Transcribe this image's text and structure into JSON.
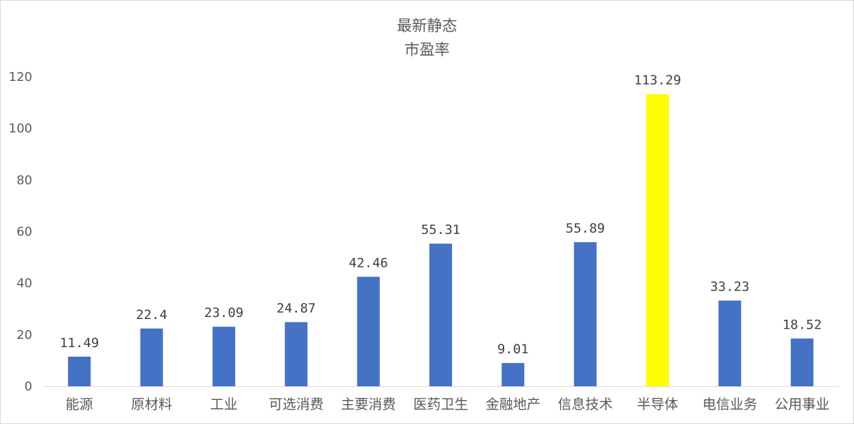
{
  "chart_data": {
    "type": "bar",
    "title": [
      "最新静态",
      "市盈率"
    ],
    "xlabel": "",
    "ylabel": "",
    "ylim": [
      0,
      120
    ],
    "yticks": [
      0,
      20,
      40,
      60,
      80,
      100,
      120
    ],
    "grid": false,
    "legend": "none",
    "categories": [
      "能源",
      "原材料",
      "工业",
      "可选消费",
      "主要消费",
      "医药卫生",
      "金融地产",
      "信息技术",
      "半导体",
      "电信业务",
      "公用事业"
    ],
    "values": [
      11.49,
      22.4,
      23.09,
      24.87,
      42.46,
      55.31,
      9.01,
      55.89,
      113.29,
      33.23,
      18.52
    ],
    "data_labels": [
      "11.49",
      "22.4",
      "23.09",
      "24.87",
      "42.46",
      "55.31",
      "9.01",
      "55.89",
      "113.29",
      "33.23",
      "18.52"
    ],
    "colors": {
      "default": "#4472C4",
      "highlight": "#FFFF00",
      "axis": "#d9d9d9",
      "text": "#595959"
    },
    "highlight_index": 8
  }
}
